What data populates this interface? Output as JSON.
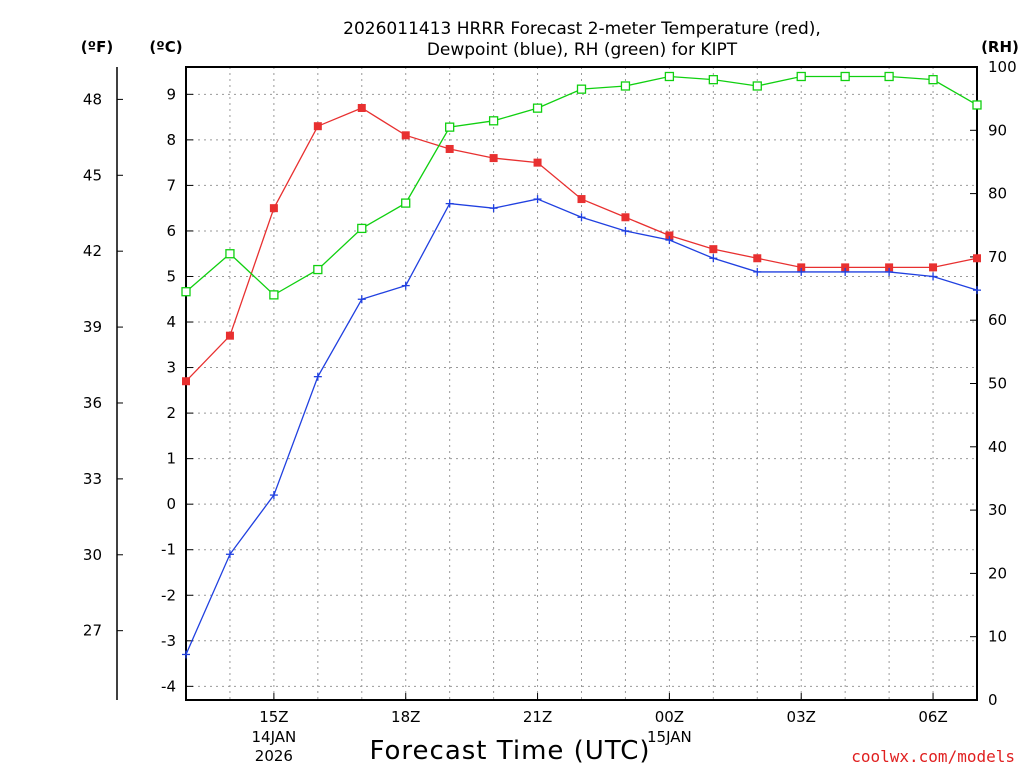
{
  "chart_data": {
    "type": "line",
    "title_lines": [
      "2026011413 HRRR Forecast 2-meter Temperature (red),",
      "Dewpoint (blue), RH (green) for KIPT"
    ],
    "xlabel": "Forecast Time (UTC)",
    "x_hours": [
      13,
      14,
      15,
      16,
      17,
      18,
      19,
      20,
      21,
      22,
      23,
      24,
      25,
      26,
      27,
      28,
      29,
      30,
      31
    ],
    "x_range": [
      13,
      31
    ],
    "x_ticks": [
      {
        "hour": 15,
        "label": "15Z",
        "sub": [
          "14JAN",
          "2026"
        ]
      },
      {
        "hour": 18,
        "label": "18Z",
        "sub": []
      },
      {
        "hour": 21,
        "label": "21Z",
        "sub": []
      },
      {
        "hour": 24,
        "label": "00Z",
        "sub": [
          "15JAN"
        ]
      },
      {
        "hour": 27,
        "label": "03Z",
        "sub": []
      },
      {
        "hour": 30,
        "label": "06Z",
        "sub": []
      }
    ],
    "axes": {
      "celsius": {
        "unit_label": "(ºC)",
        "range": [
          -4.3,
          9.6
        ],
        "ticks": [
          "-4",
          "-3",
          "-2",
          "-1",
          "0",
          "1",
          "2",
          "3",
          "4",
          "5",
          "6",
          "7",
          "8",
          "9"
        ]
      },
      "fahrenheit": {
        "unit_label": "(ºF)",
        "ticks": [
          "27",
          "30",
          "33",
          "36",
          "39",
          "42",
          "45",
          "48"
        ]
      },
      "rh": {
        "unit_label": "(RH)",
        "range": [
          0,
          100
        ],
        "ticks": [
          "0",
          "10",
          "20",
          "30",
          "40",
          "50",
          "60",
          "70",
          "80",
          "90",
          "100"
        ]
      }
    },
    "series": [
      {
        "name": "Temperature",
        "axis": "celsius",
        "color": "#e83030",
        "marker": "filled-square",
        "values": [
          2.7,
          3.7,
          6.5,
          8.3,
          8.7,
          8.1,
          7.8,
          7.6,
          7.5,
          6.7,
          6.3,
          5.9,
          5.6,
          5.4,
          5.2,
          5.2,
          5.2,
          5.2,
          5.4
        ]
      },
      {
        "name": "Dewpoint",
        "axis": "celsius",
        "color": "#2040e0",
        "marker": "plus",
        "values": [
          -3.3,
          -1.1,
          0.2,
          2.8,
          4.5,
          4.8,
          6.6,
          6.5,
          6.7,
          6.3,
          6.0,
          5.8,
          5.4,
          5.1,
          5.1,
          5.1,
          5.1,
          5.0,
          4.7
        ]
      },
      {
        "name": "RH",
        "axis": "rh",
        "color": "#10d010",
        "marker": "open-square",
        "values": [
          64.5,
          70.5,
          64,
          68,
          74.5,
          78.5,
          90.5,
          91.5,
          93.5,
          96.5,
          97,
          98.5,
          98,
          97,
          98.5,
          98.5,
          98.5,
          98,
          94
        ]
      }
    ],
    "credit": "coolwx.com/models"
  }
}
